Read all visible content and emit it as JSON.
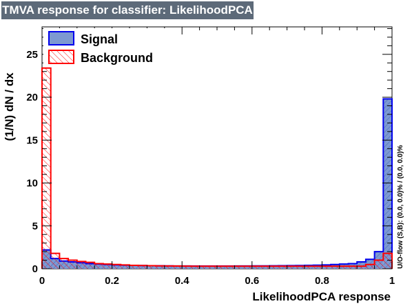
{
  "title": "TMVA response for classifier: LikelihoodPCA",
  "chart_data": {
    "type": "histogram",
    "title": "TMVA response for classifier: LikelihoodPCA",
    "xlabel": "LikelihoodPCA response",
    "ylabel": "(1/N) dN / dx",
    "xlim": [
      0,
      1
    ],
    "ylim": [
      0,
      28.2
    ],
    "x_ticks": [
      "0",
      "0.2",
      "0.4",
      "0.6",
      "0.8",
      "1"
    ],
    "y_ticks": [
      "0",
      "5",
      "10",
      "15",
      "20",
      "25"
    ],
    "side_note": "U/O-flow (S,B): (0.0, 0.0)% / (0.0, 0.0)%",
    "bin_edges_start": 0,
    "bin_width": 0.025,
    "legend_position": "top-left",
    "series": [
      {
        "name": "Signal",
        "style": "filled",
        "fill_color": "#7d99d1",
        "line_color": "#0000ee",
        "values": [
          2.2,
          1.2,
          0.9,
          0.8,
          0.7,
          0.6,
          0.55,
          0.5,
          0.45,
          0.42,
          0.4,
          0.38,
          0.36,
          0.35,
          0.34,
          0.33,
          0.33,
          0.32,
          0.32,
          0.32,
          0.32,
          0.32,
          0.33,
          0.33,
          0.34,
          0.34,
          0.35,
          0.36,
          0.37,
          0.38,
          0.4,
          0.42,
          0.45,
          0.5,
          0.55,
          0.6,
          0.8,
          1.1,
          2.0,
          19.8
        ]
      },
      {
        "name": "Background",
        "style": "hatched",
        "fill_color": "#ff0000",
        "line_color": "#ff0000",
        "values": [
          23.4,
          1.8,
          1.2,
          1.0,
          0.85,
          0.75,
          0.6,
          0.55,
          0.5,
          0.45,
          0.4,
          0.38,
          0.36,
          0.34,
          0.33,
          0.32,
          0.31,
          0.3,
          0.3,
          0.3,
          0.3,
          0.3,
          0.3,
          0.3,
          0.3,
          0.3,
          0.3,
          0.3,
          0.3,
          0.3,
          0.3,
          0.3,
          0.3,
          0.3,
          0.3,
          0.3,
          0.3,
          0.5,
          1.0,
          1.8
        ]
      }
    ]
  }
}
